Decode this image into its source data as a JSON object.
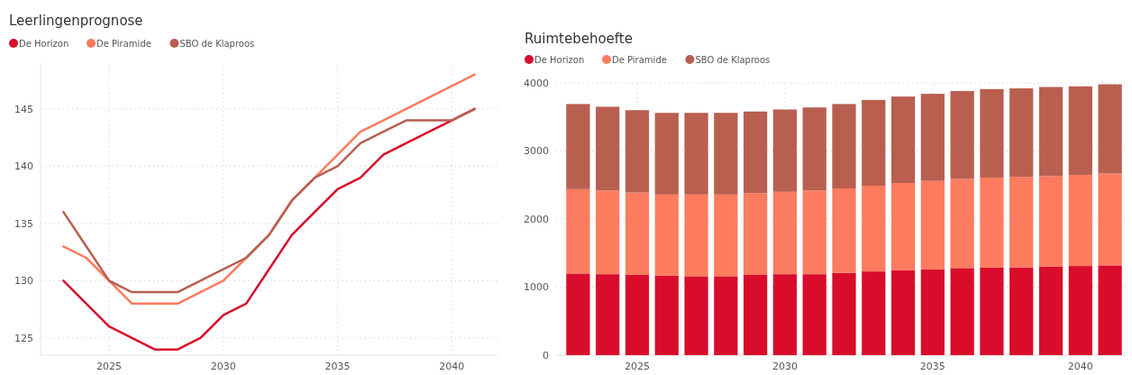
{
  "chart_data": [
    {
      "type": "line",
      "title": "Leerlingenprognose",
      "x": [
        2023,
        2024,
        2025,
        2026,
        2027,
        2028,
        2029,
        2030,
        2031,
        2032,
        2033,
        2034,
        2035,
        2036,
        2037,
        2038,
        2039,
        2040,
        2041
      ],
      "series": [
        {
          "name": "De Horizon",
          "color": "#d90d2b",
          "values": [
            130,
            128,
            126,
            125,
            124,
            124,
            125,
            127,
            128,
            131,
            134,
            136,
            138,
            139,
            141,
            142,
            143,
            144,
            145
          ]
        },
        {
          "name": "De Piramide",
          "color": "#fd7b5e",
          "values": [
            133,
            132,
            130,
            128,
            128,
            128,
            129,
            130,
            132,
            134,
            137,
            139,
            141,
            143,
            144,
            145,
            146,
            147,
            148
          ]
        },
        {
          "name": "SBO de Klaproos",
          "color": "#b85f50",
          "values": [
            136,
            133,
            130,
            129,
            129,
            129,
            130,
            131,
            132,
            134,
            137,
            139,
            140,
            142,
            143,
            144,
            144,
            144,
            145
          ]
        }
      ],
      "xlim": [
        2022,
        2042
      ],
      "xticks": [
        2025,
        2030,
        2035,
        2040
      ],
      "ylim": [
        123.5,
        149
      ],
      "yticks": [
        125,
        130,
        135,
        140,
        145
      ],
      "grid": true,
      "legend": "top left",
      "marker": "none",
      "line_style": "solid"
    },
    {
      "type": "bar",
      "title": "Ruimtebehoefte",
      "stacked": true,
      "categories": [
        null,
        null,
        "2025",
        null,
        null,
        null,
        null,
        "2030",
        null,
        null,
        null,
        null,
        "2035",
        null,
        null,
        null,
        null,
        "2040",
        null
      ],
      "series": [
        {
          "name": "De Horizon",
          "color": "#d90d2b",
          "values": [
            1200,
            1190,
            1180,
            1170,
            1160,
            1160,
            1180,
            1190,
            1190,
            1210,
            1230,
            1250,
            1260,
            1280,
            1290,
            1290,
            1300,
            1310,
            1320
          ]
        },
        {
          "name": "De Piramide",
          "color": "#fd7b5e",
          "values": [
            1240,
            1230,
            1210,
            1190,
            1200,
            1200,
            1200,
            1210,
            1230,
            1240,
            1260,
            1280,
            1300,
            1310,
            1320,
            1330,
            1330,
            1340,
            1350
          ]
        },
        {
          "name": "SBO de Klaproos",
          "color": "#b85f50",
          "values": [
            1250,
            1230,
            1210,
            1200,
            1200,
            1200,
            1200,
            1210,
            1220,
            1240,
            1260,
            1270,
            1280,
            1290,
            1300,
            1300,
            1310,
            1300,
            1310
          ]
        }
      ],
      "ylim": [
        0,
        4000
      ],
      "yticks": [
        0,
        1000,
        2000,
        3000,
        4000
      ],
      "grid": true,
      "legend": "top left"
    }
  ]
}
